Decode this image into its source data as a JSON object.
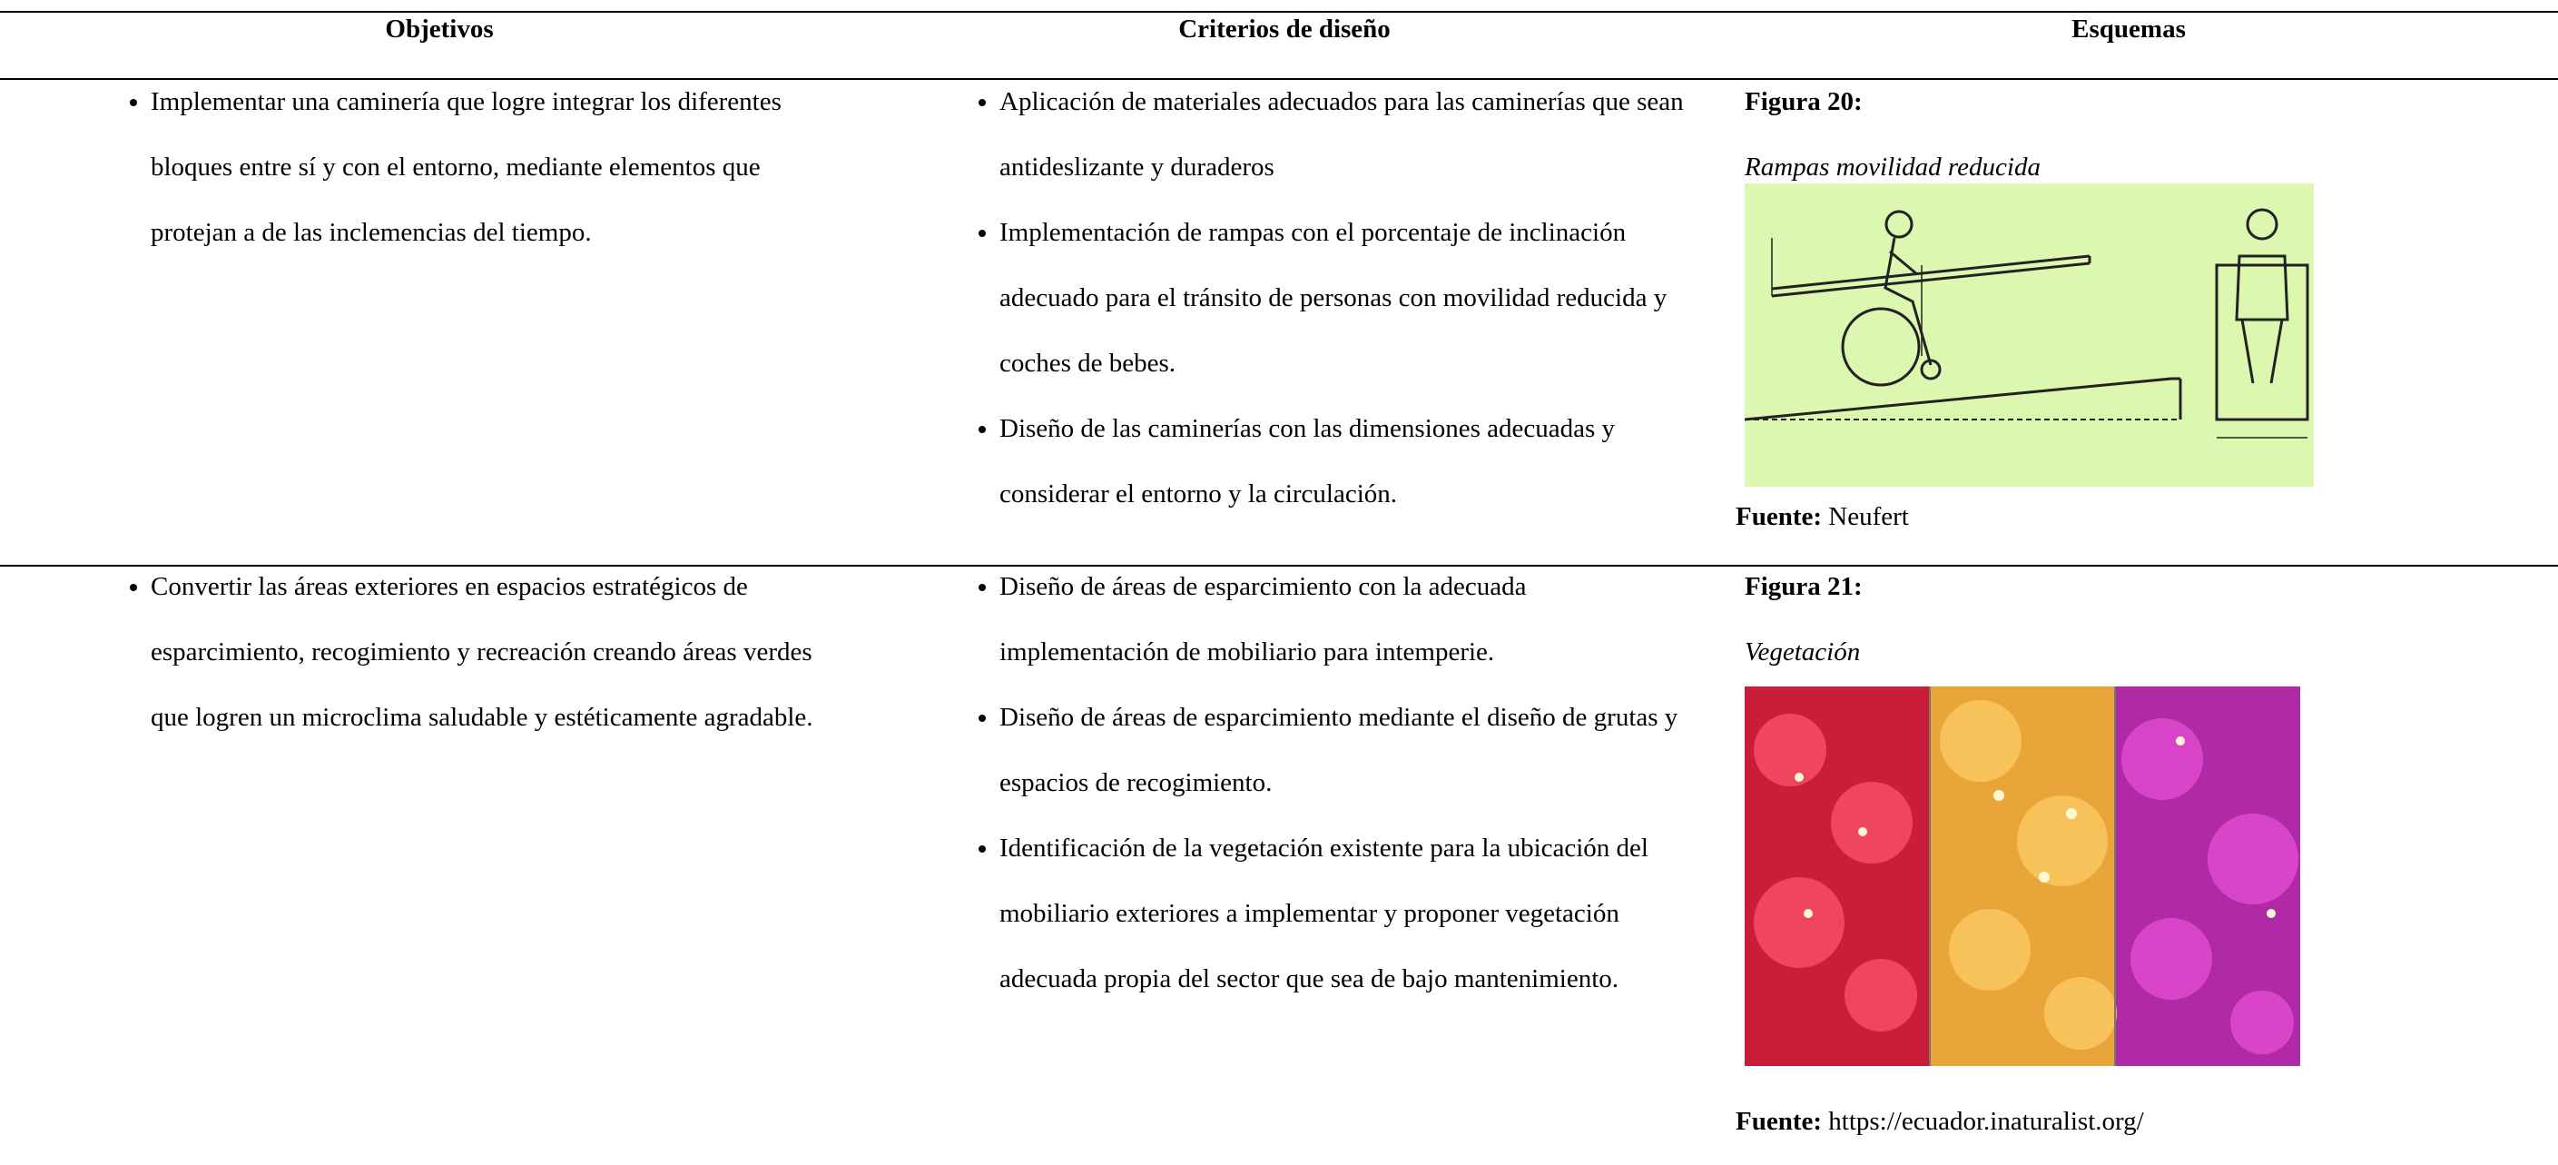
{
  "table": {
    "headers": [
      "Objetivos",
      "Criterios de diseño",
      "Esquemas"
    ],
    "rows": [
      {
        "objetivos": [
          "Implementar una caminería que logre integrar los diferentes bloques entre sí y con el entorno, mediante elementos que protejan a de las inclemencias del tiempo."
        ],
        "criterios": [
          "Aplicación de materiales adecuados para las caminerías que sean antideslizante y duraderos",
          "Implementación de rampas con el porcentaje de inclinación adecuado para el tránsito de personas con movilidad reducida y coches de bebes.",
          "Diseño de las caminerías con las dimensiones adecuadas y considerar el entorno y la circulación."
        ],
        "figure": {
          "label": "Figura 20:",
          "caption": "Rampas movilidad reducida",
          "source_label": "Fuente:",
          "source": "Neufert"
        }
      },
      {
        "objetivos": [
          "Convertir las áreas exteriores en espacios estratégicos de esparcimiento, recogimiento y recreación creando áreas verdes que logren un microclima saludable y estéticamente agradable."
        ],
        "criterios": [
          "Diseño de áreas de esparcimiento con la adecuada implementación de mobiliario para intemperie.",
          "Diseño de áreas de esparcimiento mediante el diseño de grutas y espacios de recogimiento.",
          "Identificación de la vegetación existente para la ubicación del mobiliario exteriores a implementar y proponer vegetación adecuada propia del sector que sea de bajo mantenimiento."
        ],
        "figure": {
          "label": "Figura 21:",
          "caption": "Vegetación",
          "source_label": "Fuente:",
          "source": "https://ecuador.inaturalist.org/"
        }
      }
    ]
  }
}
